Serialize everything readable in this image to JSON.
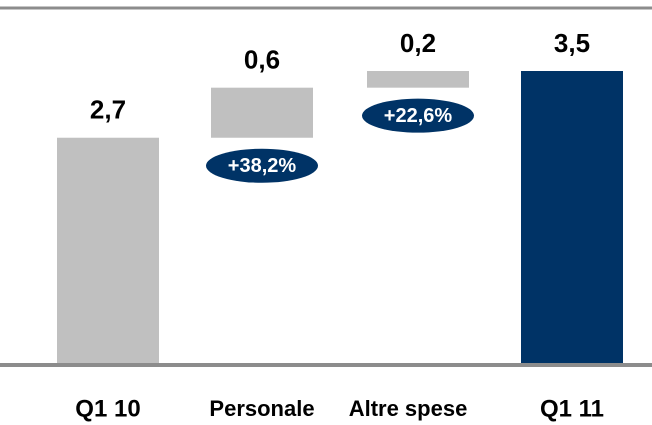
{
  "chart_data": {
    "type": "waterfall",
    "categories": [
      "Q1 10",
      "Personale",
      "Altre spese",
      "Q1 11"
    ],
    "values": [
      2.7,
      0.6,
      0.2,
      3.5
    ],
    "value_labels": [
      "2,7",
      "0,6",
      "0,2",
      "3,5"
    ],
    "measure": [
      "absolute",
      "relative",
      "relative",
      "total"
    ],
    "colors": [
      "#c0c0c0",
      "#c0c0c0",
      "#c0c0c0",
      "#003366"
    ],
    "annotations": [
      {
        "text": "+38,2%",
        "category": "Personale"
      },
      {
        "text": "+22,6%",
        "category": "Altre spese"
      }
    ]
  }
}
